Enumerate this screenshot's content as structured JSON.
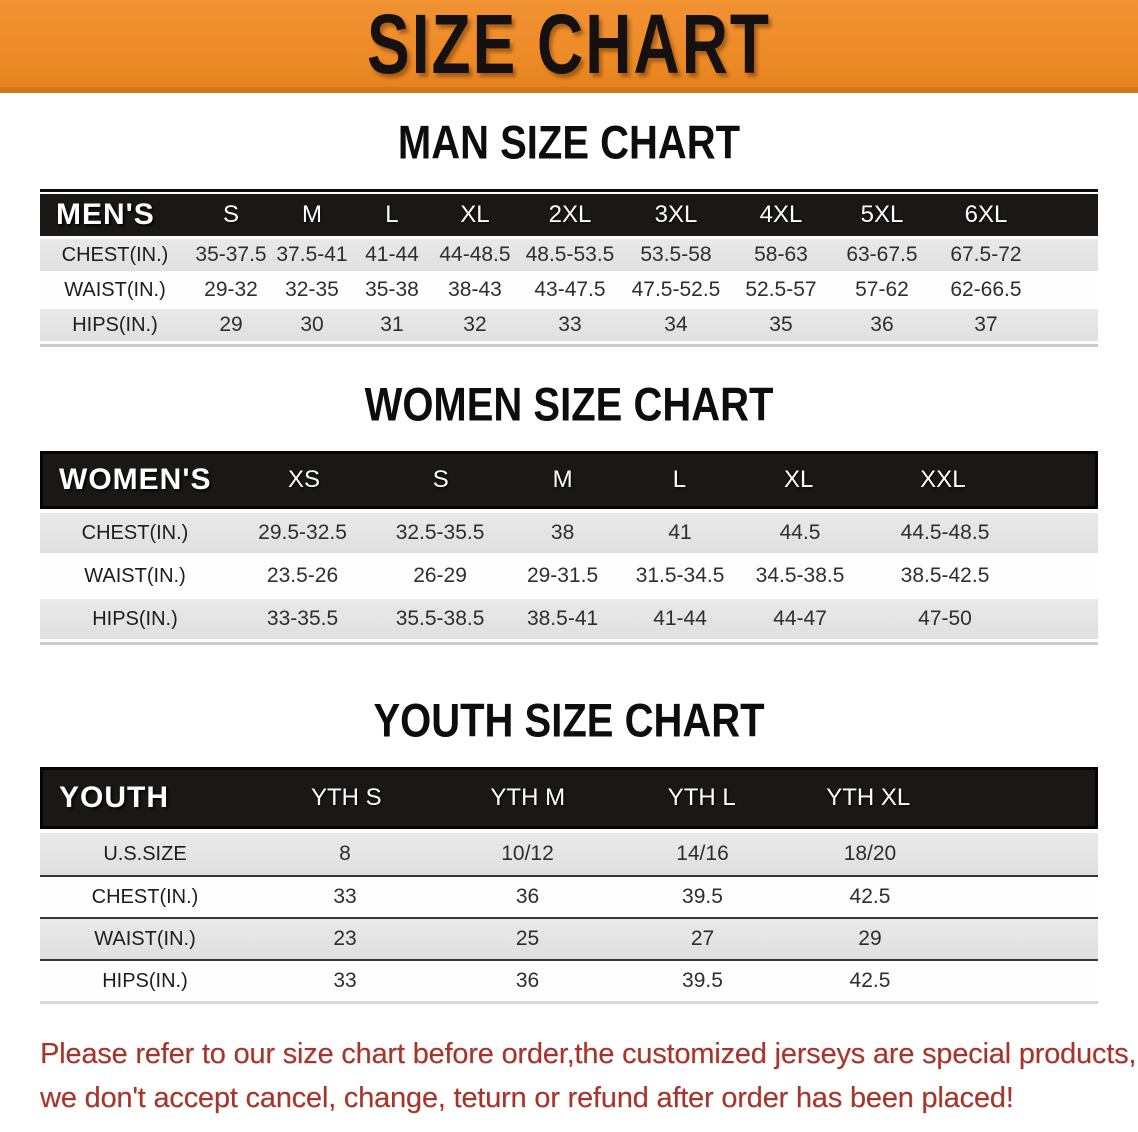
{
  "banner": {
    "title": "SIZE CHART",
    "bg_color": "#ec8a26"
  },
  "colors": {
    "header_bar": "#1b1717",
    "shaded_row": "#e4e4e4",
    "disclaimer_red": "#a6342a"
  },
  "sections": [
    {
      "title": "MAN SIZE CHART",
      "table": {
        "header_label": "MEN'S",
        "columns": [
          "S",
          "M",
          "L",
          "XL",
          "2XL",
          "3XL",
          "4XL",
          "5XL",
          "6XL"
        ],
        "rows": [
          {
            "label": "CHEST(IN.)",
            "values": [
              "35-37.5",
              "37.5-41",
              "41-44",
              "44-48.5",
              "48.5-53.5",
              "53.5-58",
              "58-63",
              "63-67.5",
              "67.5-72"
            ]
          },
          {
            "label": "WAIST(IN.)",
            "values": [
              "29-32",
              "32-35",
              "35-38",
              "38-43",
              "43-47.5",
              "47.5-52.5",
              "52.5-57",
              "57-62",
              "62-66.5"
            ]
          },
          {
            "label": "HIPS(IN.)",
            "values": [
              "29",
              "30",
              "31",
              "32",
              "33",
              "34",
              "35",
              "36",
              "37"
            ]
          }
        ]
      }
    },
    {
      "title": "WOMEN SIZE CHART",
      "table": {
        "header_label": "WOMEN'S",
        "columns": [
          "XS",
          "S",
          "M",
          "L",
          "XL",
          "XXL"
        ],
        "rows": [
          {
            "label": "CHEST(IN.)",
            "values": [
              "29.5-32.5",
              "32.5-35.5",
              "38",
              "41",
              "44.5",
              "44.5-48.5"
            ]
          },
          {
            "label": "WAIST(IN.)",
            "values": [
              "23.5-26",
              "26-29",
              "29-31.5",
              "31.5-34.5",
              "34.5-38.5",
              "38.5-42.5"
            ]
          },
          {
            "label": "HIPS(IN.)",
            "values": [
              "33-35.5",
              "35.5-38.5",
              "38.5-41",
              "41-44",
              "44-47",
              "47-50"
            ]
          }
        ]
      }
    },
    {
      "title": "YOUTH SIZE CHART",
      "table": {
        "header_label": "YOUTH",
        "columns": [
          "YTH S",
          "YTH M",
          "YTH L",
          "YTH XL"
        ],
        "rows": [
          {
            "label": "U.S.SIZE",
            "values": [
              "8",
              "10/12",
              "14/16",
              "18/20"
            ]
          },
          {
            "label": "CHEST(IN.)",
            "values": [
              "33",
              "36",
              "39.5",
              "42.5"
            ]
          },
          {
            "label": "WAIST(IN.)",
            "values": [
              "23",
              "25",
              "27",
              "29"
            ]
          },
          {
            "label": "HIPS(IN.)",
            "values": [
              "33",
              "36",
              "39.5",
              "42.5"
            ]
          }
        ]
      }
    }
  ],
  "disclaimer": {
    "lines": [
      "Please refer to our size chart before order,the customized jerseys are special products,",
      "we don't accept cancel, change, teturn or refund after order has been placed!"
    ]
  }
}
